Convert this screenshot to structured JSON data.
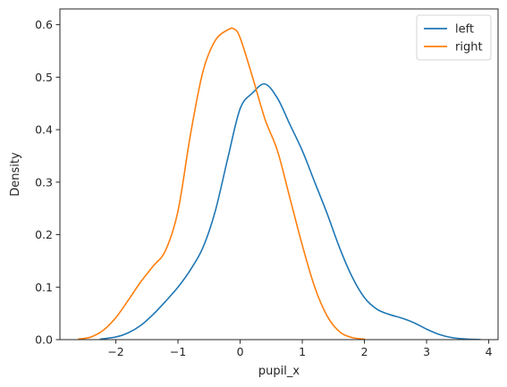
{
  "chart_data": {
    "type": "line",
    "title": "",
    "xlabel": "pupil_x",
    "ylabel": "Density",
    "xlim": [
      -2.9,
      4.15
    ],
    "ylim": [
      0,
      0.63
    ],
    "xticks": [
      -2,
      -1,
      0,
      1,
      2,
      3,
      4
    ],
    "yticks": [
      0.0,
      0.1,
      0.2,
      0.3,
      0.4,
      0.5,
      0.6
    ],
    "xtick_labels": [
      "−2",
      "−1",
      "0",
      "1",
      "2",
      "3",
      "4"
    ],
    "ytick_labels": [
      "0.0",
      "0.1",
      "0.2",
      "0.3",
      "0.4",
      "0.5",
      "0.6"
    ],
    "grid": false,
    "legend": {
      "position": "top-right"
    },
    "series": [
      {
        "name": "left",
        "color": "#1f77b4",
        "x": [
          -2.25,
          -2.0,
          -1.8,
          -1.6,
          -1.4,
          -1.2,
          -1.0,
          -0.8,
          -0.6,
          -0.4,
          -0.2,
          0.0,
          0.2,
          0.4,
          0.6,
          0.8,
          1.0,
          1.2,
          1.4,
          1.6,
          1.8,
          2.0,
          2.2,
          2.4,
          2.6,
          2.8,
          3.0,
          3.2,
          3.4,
          3.6,
          3.87
        ],
        "y": [
          0.001,
          0.005,
          0.013,
          0.027,
          0.048,
          0.073,
          0.1,
          0.133,
          0.175,
          0.245,
          0.345,
          0.44,
          0.47,
          0.487,
          0.46,
          0.41,
          0.36,
          0.3,
          0.24,
          0.175,
          0.12,
          0.08,
          0.058,
          0.048,
          0.041,
          0.032,
          0.02,
          0.01,
          0.004,
          0.0015,
          0.0
        ]
      },
      {
        "name": "right",
        "color": "#ff7f0e",
        "x": [
          -2.6,
          -2.4,
          -2.2,
          -2.0,
          -1.8,
          -1.6,
          -1.4,
          -1.2,
          -1.0,
          -0.8,
          -0.6,
          -0.4,
          -0.2,
          -0.1,
          0.0,
          0.2,
          0.4,
          0.6,
          0.8,
          1.0,
          1.2,
          1.4,
          1.6,
          1.8,
          2.0
        ],
        "y": [
          0.001,
          0.005,
          0.018,
          0.042,
          0.075,
          0.11,
          0.14,
          0.17,
          0.245,
          0.39,
          0.51,
          0.57,
          0.59,
          0.592,
          0.575,
          0.5,
          0.42,
          0.36,
          0.27,
          0.18,
          0.1,
          0.045,
          0.015,
          0.004,
          0.001
        ]
      }
    ]
  }
}
